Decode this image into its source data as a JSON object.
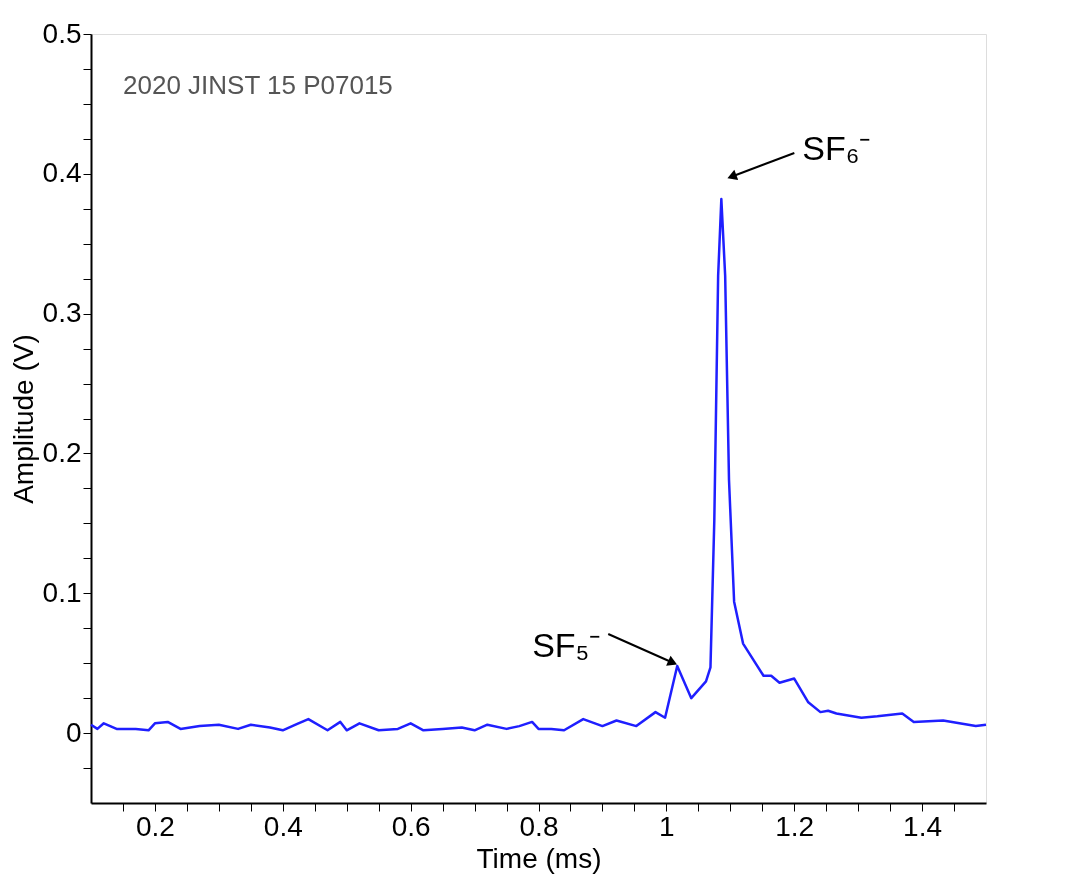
{
  "chart_data": {
    "type": "line",
    "xlabel": "Time (ms)",
    "ylabel": "Amplitude (V)",
    "xlim": [
      0.1,
      1.5
    ],
    "ylim": [
      -0.05,
      0.5
    ],
    "xticks": [
      {
        "value": 0.15,
        "label": null
      },
      0.2,
      {
        "value": 0.25,
        "label": null
      },
      0.4,
      {
        "value": 0.35,
        "label": null
      },
      {
        "value": 0.3,
        "label": null
      },
      {
        "value": 0.45,
        "label": null
      },
      0.6,
      {
        "value": 0.5,
        "label": null
      },
      {
        "value": 0.55,
        "label": null
      },
      {
        "value": 0.65,
        "label": null
      },
      {
        "value": 0.7,
        "label": null
      },
      {
        "value": 0.75,
        "label": null
      },
      0.8,
      {
        "value": 0.85,
        "label": null
      },
      {
        "value": 0.9,
        "label": null
      },
      {
        "value": 0.95,
        "label": null
      },
      1,
      {
        "value": 1.05,
        "label": null
      },
      {
        "value": 1.1,
        "label": null
      },
      {
        "value": 1.15,
        "label": null
      },
      1.2,
      {
        "value": 1.25,
        "label": null
      },
      {
        "value": 1.3,
        "label": null
      },
      {
        "value": 1.35,
        "label": null
      },
      1.4,
      {
        "value": 1.45,
        "label": null
      }
    ],
    "yticks": [
      {
        "value": -0.025,
        "label": null
      },
      0,
      {
        "value": 0.025,
        "label": null
      },
      {
        "value": 0.05,
        "label": null
      },
      {
        "value": 0.075,
        "label": null
      },
      0.1,
      {
        "value": 0.125,
        "label": null
      },
      {
        "value": 0.15,
        "label": null
      },
      {
        "value": 0.175,
        "label": null
      },
      0.2,
      {
        "value": 0.225,
        "label": null
      },
      {
        "value": 0.25,
        "label": null
      },
      {
        "value": 0.275,
        "label": null
      },
      0.3,
      {
        "value": 0.325,
        "label": null
      },
      {
        "value": 0.35,
        "label": null
      },
      {
        "value": 0.375,
        "label": null
      },
      0.4,
      {
        "value": 0.425,
        "label": null
      },
      {
        "value": 0.45,
        "label": null
      },
      {
        "value": 0.475,
        "label": null
      },
      0.5
    ],
    "grid": false,
    "line_style": "solid",
    "marker": "none",
    "annotations": [
      "2020 JINST 15 P07015",
      {
        "text": "SF₅⁻",
        "x": 1.017,
        "y": 0.048
      },
      {
        "text": "SF₆⁻",
        "x": 1.086,
        "y": 0.382
      }
    ],
    "series": [
      {
        "color": "#1f1fff",
        "x": [
          0.1,
          0.11,
          0.12,
          0.14,
          0.17,
          0.19,
          0.2,
          0.22,
          0.24,
          0.27,
          0.3,
          0.33,
          0.35,
          0.38,
          0.4,
          0.42,
          0.44,
          0.47,
          0.49,
          0.5,
          0.52,
          0.55,
          0.58,
          0.6,
          0.62,
          0.65,
          0.68,
          0.7,
          0.72,
          0.75,
          0.77,
          0.79,
          0.8,
          0.82,
          0.84,
          0.87,
          0.9,
          0.922,
          0.953,
          0.983,
          0.998,
          1.017,
          1.039,
          1.062,
          1.069,
          1.075,
          1.081,
          1.086,
          1.092,
          1.098,
          1.106,
          1.12,
          1.152,
          1.164,
          1.177,
          1.2,
          1.222,
          1.241,
          1.253,
          1.266,
          1.305,
          1.33,
          1.369,
          1.387,
          1.433,
          1.484,
          1.5
        ],
        "values": [
          0.006,
          0.003,
          0.007,
          0.003,
          0.003,
          0.002,
          0.007,
          0.008,
          0.003,
          0.005,
          0.006,
          0.003,
          0.006,
          0.004,
          0.002,
          0.006,
          0.01,
          0.002,
          0.008,
          0.002,
          0.007,
          0.002,
          0.003,
          0.007,
          0.002,
          0.003,
          0.004,
          0.002,
          0.006,
          0.003,
          0.005,
          0.008,
          0.003,
          0.003,
          0.002,
          0.01,
          0.005,
          0.009,
          0.005,
          0.015,
          0.011,
          0.048,
          0.025,
          0.037,
          0.047,
          0.152,
          0.327,
          0.382,
          0.327,
          0.181,
          0.094,
          0.064,
          0.041,
          0.041,
          0.036,
          0.039,
          0.022,
          0.015,
          0.016,
          0.014,
          0.011,
          0.012,
          0.014,
          0.008,
          0.009,
          0.005,
          0.006
        ]
      }
    ]
  }
}
